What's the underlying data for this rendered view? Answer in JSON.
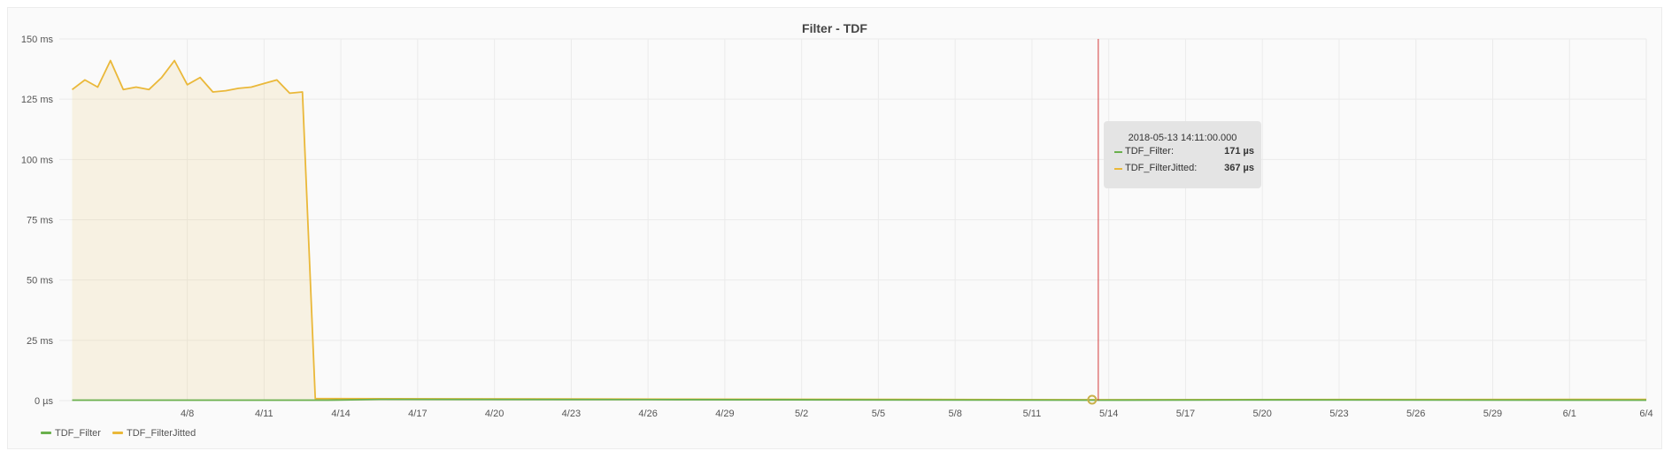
{
  "chart_data": {
    "type": "line",
    "title": "Filter - TDF",
    "xlabel": "",
    "ylabel": "",
    "y_unit": "ms",
    "ylim": [
      0,
      150
    ],
    "yticks": [
      {
        "value": 0,
        "label": "0 µs"
      },
      {
        "value": 25,
        "label": "25 ms"
      },
      {
        "value": 50,
        "label": "50 ms"
      },
      {
        "value": 75,
        "label": "75 ms"
      },
      {
        "value": 100,
        "label": "100 ms"
      },
      {
        "value": 125,
        "label": "125 ms"
      },
      {
        "value": 150,
        "label": "150 ms"
      }
    ],
    "xlim": [
      "2018-04-03",
      "2018-06-04"
    ],
    "xticks": [
      {
        "date": "2018-04-08",
        "label": "4/8"
      },
      {
        "date": "2018-04-11",
        "label": "4/11"
      },
      {
        "date": "2018-04-14",
        "label": "4/14"
      },
      {
        "date": "2018-04-17",
        "label": "4/17"
      },
      {
        "date": "2018-04-20",
        "label": "4/20"
      },
      {
        "date": "2018-04-23",
        "label": "4/23"
      },
      {
        "date": "2018-04-26",
        "label": "4/26"
      },
      {
        "date": "2018-04-29",
        "label": "4/29"
      },
      {
        "date": "2018-05-02",
        "label": "5/2"
      },
      {
        "date": "2018-05-05",
        "label": "5/5"
      },
      {
        "date": "2018-05-08",
        "label": "5/8"
      },
      {
        "date": "2018-05-11",
        "label": "5/11"
      },
      {
        "date": "2018-05-14",
        "label": "5/14"
      },
      {
        "date": "2018-05-17",
        "label": "5/17"
      },
      {
        "date": "2018-05-20",
        "label": "5/20"
      },
      {
        "date": "2018-05-23",
        "label": "5/23"
      },
      {
        "date": "2018-05-26",
        "label": "5/26"
      },
      {
        "date": "2018-05-29",
        "label": "5/29"
      },
      {
        "date": "2018-06-01",
        "label": "6/1"
      },
      {
        "date": "2018-06-04",
        "label": "6/4"
      }
    ],
    "grid": true,
    "legend_position": "bottom-left",
    "series": [
      {
        "name": "TDF_Filter",
        "color": "#6ab04c",
        "fill": false,
        "points": [
          {
            "x": "2018-04-03 12:00",
            "y": 0.2
          },
          {
            "x": "2018-04-13 12:00",
            "y": 0.2
          },
          {
            "x": "2018-04-15 12:00",
            "y": 0.5
          },
          {
            "x": "2018-04-26 00:00",
            "y": 0.4
          },
          {
            "x": "2018-05-13 14:11",
            "y": 0.171
          },
          {
            "x": "2018-05-20 00:00",
            "y": 0.3
          },
          {
            "x": "2018-06-04 00:00",
            "y": 0.2
          }
        ]
      },
      {
        "name": "TDF_FilterJitted",
        "color": "#eab839",
        "fill": true,
        "points": [
          {
            "x": "2018-04-03 12:00",
            "y": 129
          },
          {
            "x": "2018-04-04 00:00",
            "y": 133
          },
          {
            "x": "2018-04-04 12:00",
            "y": 130
          },
          {
            "x": "2018-04-05 00:00",
            "y": 141
          },
          {
            "x": "2018-04-05 12:00",
            "y": 129
          },
          {
            "x": "2018-04-06 00:00",
            "y": 130
          },
          {
            "x": "2018-04-06 12:00",
            "y": 129
          },
          {
            "x": "2018-04-07 00:00",
            "y": 134
          },
          {
            "x": "2018-04-07 12:00",
            "y": 141
          },
          {
            "x": "2018-04-08 00:00",
            "y": 131
          },
          {
            "x": "2018-04-08 12:00",
            "y": 134
          },
          {
            "x": "2018-04-09 00:00",
            "y": 128
          },
          {
            "x": "2018-04-09 12:00",
            "y": 128.5
          },
          {
            "x": "2018-04-10 00:00",
            "y": 129.5
          },
          {
            "x": "2018-04-10 12:00",
            "y": 130
          },
          {
            "x": "2018-04-11 00:00",
            "y": 131.5
          },
          {
            "x": "2018-04-11 12:00",
            "y": 133
          },
          {
            "x": "2018-04-12 00:00",
            "y": 127.5
          },
          {
            "x": "2018-04-12 12:00",
            "y": 128
          },
          {
            "x": "2018-04-13 00:00",
            "y": 0.8
          },
          {
            "x": "2018-05-13 14:11",
            "y": 0.367
          },
          {
            "x": "2018-06-04 00:00",
            "y": 0.5
          }
        ]
      }
    ],
    "crosshair": {
      "x": "2018-05-13 14:11"
    }
  },
  "tooltip": {
    "time": "2018-05-13 14:11:00.000",
    "rows": [
      {
        "name": "TDF_Filter:",
        "value": "171 µs",
        "color": "#6ab04c"
      },
      {
        "name": "TDF_FilterJitted:",
        "value": "367 µs",
        "color": "#eab839"
      }
    ]
  },
  "legend": [
    {
      "name": "TDF_Filter",
      "color": "#6ab04c"
    },
    {
      "name": "TDF_FilterJitted",
      "color": "#eab839"
    }
  ]
}
